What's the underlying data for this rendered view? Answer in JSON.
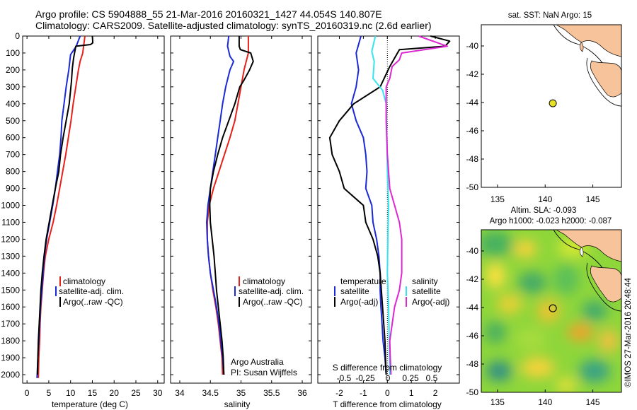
{
  "header": {
    "line1": "Argo profile: CS 5904888_55 21-Mar-2016 20160321_1427 44.054S 140.807E",
    "line2": "Climatology: CARS2009. Satellite-adjusted climatology: synTS_20160319.nc (2.6d earlier)"
  },
  "colors": {
    "climatology": "#e8201a",
    "satellite": "#1a2ad6",
    "argo": "#000000",
    "sat_salinity": "#33e5f0",
    "argo_salinity": "#dd28d2",
    "land": "#f7c39a"
  },
  "chart_data": [
    {
      "type": "line",
      "id": "temperature",
      "xlabel": "temperature (deg C)",
      "xlim": [
        -1,
        31.5
      ],
      "ylim": [
        2050,
        0
      ],
      "xticks": [
        0,
        5,
        10,
        15,
        20,
        25,
        30
      ],
      "yticks": [
        0,
        100,
        200,
        300,
        400,
        500,
        600,
        700,
        800,
        900,
        1000,
        1100,
        1200,
        1300,
        1400,
        1500,
        1600,
        1700,
        1800,
        1900,
        2000
      ],
      "legend": [
        "climatology",
        "satellite-adj. clim.",
        "Argo(..raw -QC)"
      ],
      "series": [
        {
          "name": "climatology",
          "color": "#e8201a",
          "points": [
            [
              13.3,
              0
            ],
            [
              12.8,
              100
            ],
            [
              12.2,
              150
            ],
            [
              11.8,
              200
            ],
            [
              11.2,
              300
            ],
            [
              10.6,
              400
            ],
            [
              10.1,
              500
            ],
            [
              9.5,
              600
            ],
            [
              8.9,
              700
            ],
            [
              8.2,
              800
            ],
            [
              7.5,
              900
            ],
            [
              6.8,
              1000
            ],
            [
              6.0,
              1100
            ],
            [
              5.0,
              1200
            ],
            [
              4.2,
              1300
            ],
            [
              3.8,
              1400
            ],
            [
              3.5,
              1500
            ],
            [
              3.2,
              1600
            ],
            [
              3.0,
              1700
            ],
            [
              2.9,
              1800
            ],
            [
              2.7,
              1900
            ],
            [
              2.6,
              2020
            ]
          ]
        },
        {
          "name": "satellite-adj. clim.",
          "color": "#1a2ad6",
          "points": [
            [
              12.2,
              0
            ],
            [
              11.3,
              60
            ],
            [
              10.0,
              110
            ],
            [
              9.6,
              200
            ],
            [
              9.0,
              300
            ],
            [
              8.5,
              400
            ],
            [
              8.0,
              500
            ],
            [
              7.8,
              600
            ],
            [
              7.5,
              700
            ],
            [
              7.0,
              800
            ],
            [
              6.5,
              900
            ],
            [
              5.9,
              1000
            ],
            [
              5.2,
              1100
            ],
            [
              4.5,
              1200
            ],
            [
              4.0,
              1300
            ],
            [
              3.7,
              1400
            ],
            [
              3.4,
              1500
            ],
            [
              3.1,
              1600
            ],
            [
              2.9,
              1700
            ],
            [
              2.7,
              1800
            ],
            [
              2.5,
              1900
            ],
            [
              2.3,
              2020
            ]
          ]
        },
        {
          "name": "Argo(..raw -QC)",
          "color": "#000000",
          "points": [
            [
              15.0,
              0
            ],
            [
              15.1,
              40
            ],
            [
              14.6,
              50
            ],
            [
              11.2,
              60
            ],
            [
              10.7,
              130
            ],
            [
              10.4,
              190
            ],
            [
              10.2,
              270
            ],
            [
              9.7,
              400
            ],
            [
              9.0,
              500
            ],
            [
              8.3,
              600
            ],
            [
              7.7,
              700
            ],
            [
              7.3,
              800
            ],
            [
              6.5,
              900
            ],
            [
              5.8,
              1000
            ],
            [
              5.1,
              1100
            ],
            [
              4.4,
              1200
            ],
            [
              3.9,
              1300
            ],
            [
              3.5,
              1400
            ],
            [
              3.2,
              1500
            ],
            [
              3.0,
              1600
            ],
            [
              2.8,
              1700
            ],
            [
              2.6,
              1800
            ],
            [
              2.5,
              1900
            ],
            [
              2.4,
              2000
            ]
          ]
        }
      ]
    },
    {
      "type": "line",
      "id": "salinity",
      "xlabel": "salinity",
      "xlim": [
        33.85,
        36.15
      ],
      "ylim": [
        2050,
        0
      ],
      "xticks": [
        34,
        34.5,
        35,
        35.5,
        36
      ],
      "legend": [
        "climatology",
        "satellite-adj. clim.",
        "Argo(..raw -QC)"
      ],
      "annotation": [
        "Argo Australia",
        "PI: Susan Wijffels"
      ],
      "series": [
        {
          "name": "climatology",
          "color": "#e8201a",
          "points": [
            [
              35.12,
              0
            ],
            [
              35.12,
              100
            ],
            [
              35.05,
              200
            ],
            [
              35.0,
              300
            ],
            [
              34.95,
              400
            ],
            [
              34.9,
              500
            ],
            [
              34.82,
              600
            ],
            [
              34.73,
              700
            ],
            [
              34.64,
              800
            ],
            [
              34.55,
              900
            ],
            [
              34.48,
              1000
            ],
            [
              34.45,
              1100
            ],
            [
              34.45,
              1200
            ],
            [
              34.47,
              1300
            ],
            [
              34.5,
              1400
            ],
            [
              34.54,
              1500
            ],
            [
              34.59,
              1600
            ],
            [
              34.63,
              1700
            ],
            [
              34.66,
              1800
            ],
            [
              34.69,
              1900
            ],
            [
              34.7,
              2000
            ]
          ]
        },
        {
          "name": "satellite-adj. clim.",
          "color": "#1a2ad6",
          "points": [
            [
              34.8,
              0
            ],
            [
              34.78,
              60
            ],
            [
              34.82,
              120
            ],
            [
              34.88,
              150
            ],
            [
              34.82,
              200
            ],
            [
              34.75,
              300
            ],
            [
              34.7,
              400
            ],
            [
              34.66,
              500
            ],
            [
              34.62,
              600
            ],
            [
              34.58,
              700
            ],
            [
              34.54,
              800
            ],
            [
              34.5,
              900
            ],
            [
              34.46,
              1000
            ],
            [
              34.44,
              1100
            ],
            [
              34.45,
              1200
            ],
            [
              34.47,
              1300
            ],
            [
              34.5,
              1400
            ],
            [
              34.55,
              1500
            ],
            [
              34.6,
              1600
            ],
            [
              34.64,
              1700
            ],
            [
              34.67,
              1800
            ],
            [
              34.7,
              1900
            ],
            [
              34.72,
              2000
            ]
          ]
        },
        {
          "name": "Argo(..raw -QC)",
          "color": "#000000",
          "points": [
            [
              34.97,
              0
            ],
            [
              34.97,
              60
            ],
            [
              34.99,
              80
            ],
            [
              35.16,
              100
            ],
            [
              35.2,
              150
            ],
            [
              35.14,
              200
            ],
            [
              35.05,
              260
            ],
            [
              34.98,
              300
            ],
            [
              34.9,
              400
            ],
            [
              34.8,
              500
            ],
            [
              34.7,
              600
            ],
            [
              34.62,
              700
            ],
            [
              34.55,
              800
            ],
            [
              34.5,
              900
            ],
            [
              34.49,
              1000
            ],
            [
              34.5,
              1100
            ],
            [
              34.53,
              1200
            ],
            [
              34.56,
              1300
            ],
            [
              34.58,
              1400
            ],
            [
              34.6,
              1500
            ],
            [
              34.63,
              1600
            ],
            [
              34.66,
              1700
            ],
            [
              34.69,
              1800
            ],
            [
              34.71,
              1900
            ],
            [
              34.72,
              2000
            ]
          ]
        }
      ]
    },
    {
      "type": "line",
      "id": "difference",
      "xlabel": "T difference from climatology",
      "xlabel_top": "S difference from climatology",
      "xlim": [
        -2.9,
        3.0
      ],
      "ylim": [
        2050,
        0
      ],
      "xticks": [
        -2,
        -1,
        0,
        1,
        2
      ],
      "xticks_s": [
        "-0.5",
        "-0.25",
        "0",
        "0.25",
        "0.5"
      ],
      "legend_t": {
        "title": "temperature",
        "items": [
          "satellite",
          "Argo(-adj)"
        ]
      },
      "legend_s": {
        "title": "salinity",
        "items": [
          "satellite",
          "Argo(-adj)"
        ]
      },
      "series": [
        {
          "name": "temperature satellite",
          "color": "#1a2ad6",
          "points": [
            [
              -1.1,
              0
            ],
            [
              -1.3,
              100
            ],
            [
              -1.2,
              200
            ],
            [
              -1.3,
              300
            ],
            [
              -1.5,
              400
            ],
            [
              -1.3,
              500
            ],
            [
              -1.0,
              600
            ],
            [
              -0.9,
              700
            ],
            [
              -0.85,
              800
            ],
            [
              -0.9,
              900
            ],
            [
              -0.65,
              1000
            ],
            [
              -0.6,
              1100
            ],
            [
              -0.45,
              1200
            ],
            [
              -0.35,
              1300
            ],
            [
              -0.3,
              1400
            ],
            [
              -0.3,
              1500
            ],
            [
              -0.27,
              1600
            ],
            [
              -0.22,
              1700
            ],
            [
              -0.18,
              1800
            ],
            [
              -0.1,
              1900
            ],
            [
              -0.05,
              2000
            ]
          ]
        },
        {
          "name": "temperature Argo(-adj)",
          "color": "#000000",
          "points": [
            [
              1.8,
              0
            ],
            [
              2.6,
              30
            ],
            [
              2.4,
              60
            ],
            [
              0.5,
              80
            ],
            [
              0.1,
              180
            ],
            [
              -0.3,
              300
            ],
            [
              -1.4,
              400
            ],
            [
              -2.0,
              500
            ],
            [
              -2.4,
              600
            ],
            [
              -2.3,
              700
            ],
            [
              -2.0,
              800
            ],
            [
              -1.8,
              900
            ],
            [
              -1.0,
              1000
            ],
            [
              -0.9,
              1100
            ],
            [
              -0.6,
              1200
            ],
            [
              -0.4,
              1300
            ],
            [
              -0.3,
              1400
            ],
            [
              -0.25,
              1500
            ],
            [
              -0.2,
              1600
            ],
            [
              -0.15,
              1700
            ],
            [
              -0.1,
              1800
            ],
            [
              -0.08,
              1900
            ],
            [
              -0.05,
              2000
            ]
          ]
        },
        {
          "name": "salinity satellite",
          "color": "#33e5f0",
          "points": [
            [
              -0.5,
              0
            ],
            [
              -0.65,
              90
            ],
            [
              -0.55,
              150
            ],
            [
              -0.6,
              250
            ],
            [
              -0.2,
              320
            ],
            [
              -0.05,
              400
            ],
            [
              -0.02,
              600
            ],
            [
              0.0,
              800
            ],
            [
              0.05,
              1000
            ],
            [
              0.02,
              1200
            ],
            [
              0.0,
              1400
            ],
            [
              0.05,
              1600
            ],
            [
              0.08,
              1800
            ],
            [
              0.1,
              2000
            ]
          ]
        },
        {
          "name": "salinity Argo(-adj)",
          "color": "#dd28d2",
          "points": [
            [
              1.3,
              0
            ],
            [
              2.5,
              60
            ],
            [
              0.6,
              100
            ],
            [
              0.5,
              140
            ],
            [
              0.2,
              180
            ],
            [
              0.1,
              250
            ],
            [
              -0.05,
              300
            ],
            [
              -0.05,
              500
            ],
            [
              0.0,
              700
            ],
            [
              0.1,
              900
            ],
            [
              0.3,
              1000
            ],
            [
              0.5,
              1100
            ],
            [
              0.6,
              1200
            ],
            [
              0.6,
              1300
            ],
            [
              0.6,
              1400
            ],
            [
              0.5,
              1500
            ],
            [
              0.3,
              1600
            ],
            [
              0.2,
              1700
            ],
            [
              0.1,
              1800
            ],
            [
              0.12,
              1900
            ],
            [
              0.15,
              2000
            ]
          ]
        }
      ]
    }
  ],
  "map_sst": {
    "title": "sat. SST: NaN Argo: 15",
    "xticks": [
      "135",
      "140",
      "145"
    ],
    "yticks": [
      "-40",
      "-42",
      "-44",
      "-46",
      "-48",
      "-50"
    ]
  },
  "map_sla": {
    "title1": "Altim. SLA: -0.093",
    "title2": "Argo h1000: -0.023 h2000: -0.087",
    "xticks": [
      "135",
      "140",
      "145"
    ],
    "yticks": [
      "-40",
      "-42",
      "-44",
      "-46",
      "-48",
      "-50"
    ]
  },
  "footer": {
    "credit": "©IMOS 27-Mar-2016 20:48:44"
  }
}
